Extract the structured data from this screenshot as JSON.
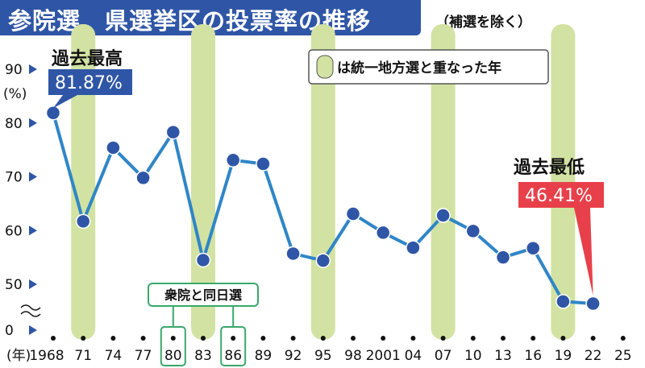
{
  "title": "参院選　県選挙区の投票率の推移",
  "subtitle_note": "（補選を除く）",
  "legend": {
    "text": "は統一地方選と重なった年",
    "color": "#d2e2a2"
  },
  "same_day_label": "衆院と同日選",
  "callouts": {
    "max": {
      "title": "過去最高",
      "value": "81.87%",
      "color": "#2f56a6"
    },
    "min": {
      "title": "過去最低",
      "value": "46.41%",
      "color": "#e8404a"
    }
  },
  "colors": {
    "line": "#2f86c7",
    "point": "#2f56a6",
    "axis": "#2f56a6",
    "title_bg": "#2f56a6"
  },
  "chart_data": {
    "type": "line",
    "ylabel": "(%)",
    "xlabel": "(年)",
    "ylim": [
      0,
      90
    ],
    "y_ticks": [
      "0",
      "50",
      "60",
      "70",
      "80",
      "90"
    ],
    "y_axis_break": true,
    "x_tick_labels": [
      "1968",
      "71",
      "74",
      "77",
      "80",
      "83",
      "86",
      "89",
      "92",
      "95",
      "98",
      "2001",
      "04",
      "07",
      "10",
      "13",
      "16",
      "19",
      "22",
      "25"
    ],
    "years": [
      1968,
      1971,
      1974,
      1977,
      1980,
      1983,
      1986,
      1989,
      1992,
      1995,
      1998,
      2001,
      2004,
      2007,
      2010,
      2013,
      2016,
      2019,
      2022
    ],
    "values": [
      81.87,
      61.7,
      75.4,
      69.8,
      78.3,
      54.5,
      73.1,
      72.4,
      55.7,
      54.4,
      63.1,
      59.6,
      56.8,
      62.8,
      59.9,
      55.0,
      56.7,
      46.8,
      46.41
    ],
    "highlighted_years": [
      1971,
      1983,
      1995,
      2007,
      2019
    ],
    "same_day_election_years": [
      1980,
      1986
    ]
  }
}
